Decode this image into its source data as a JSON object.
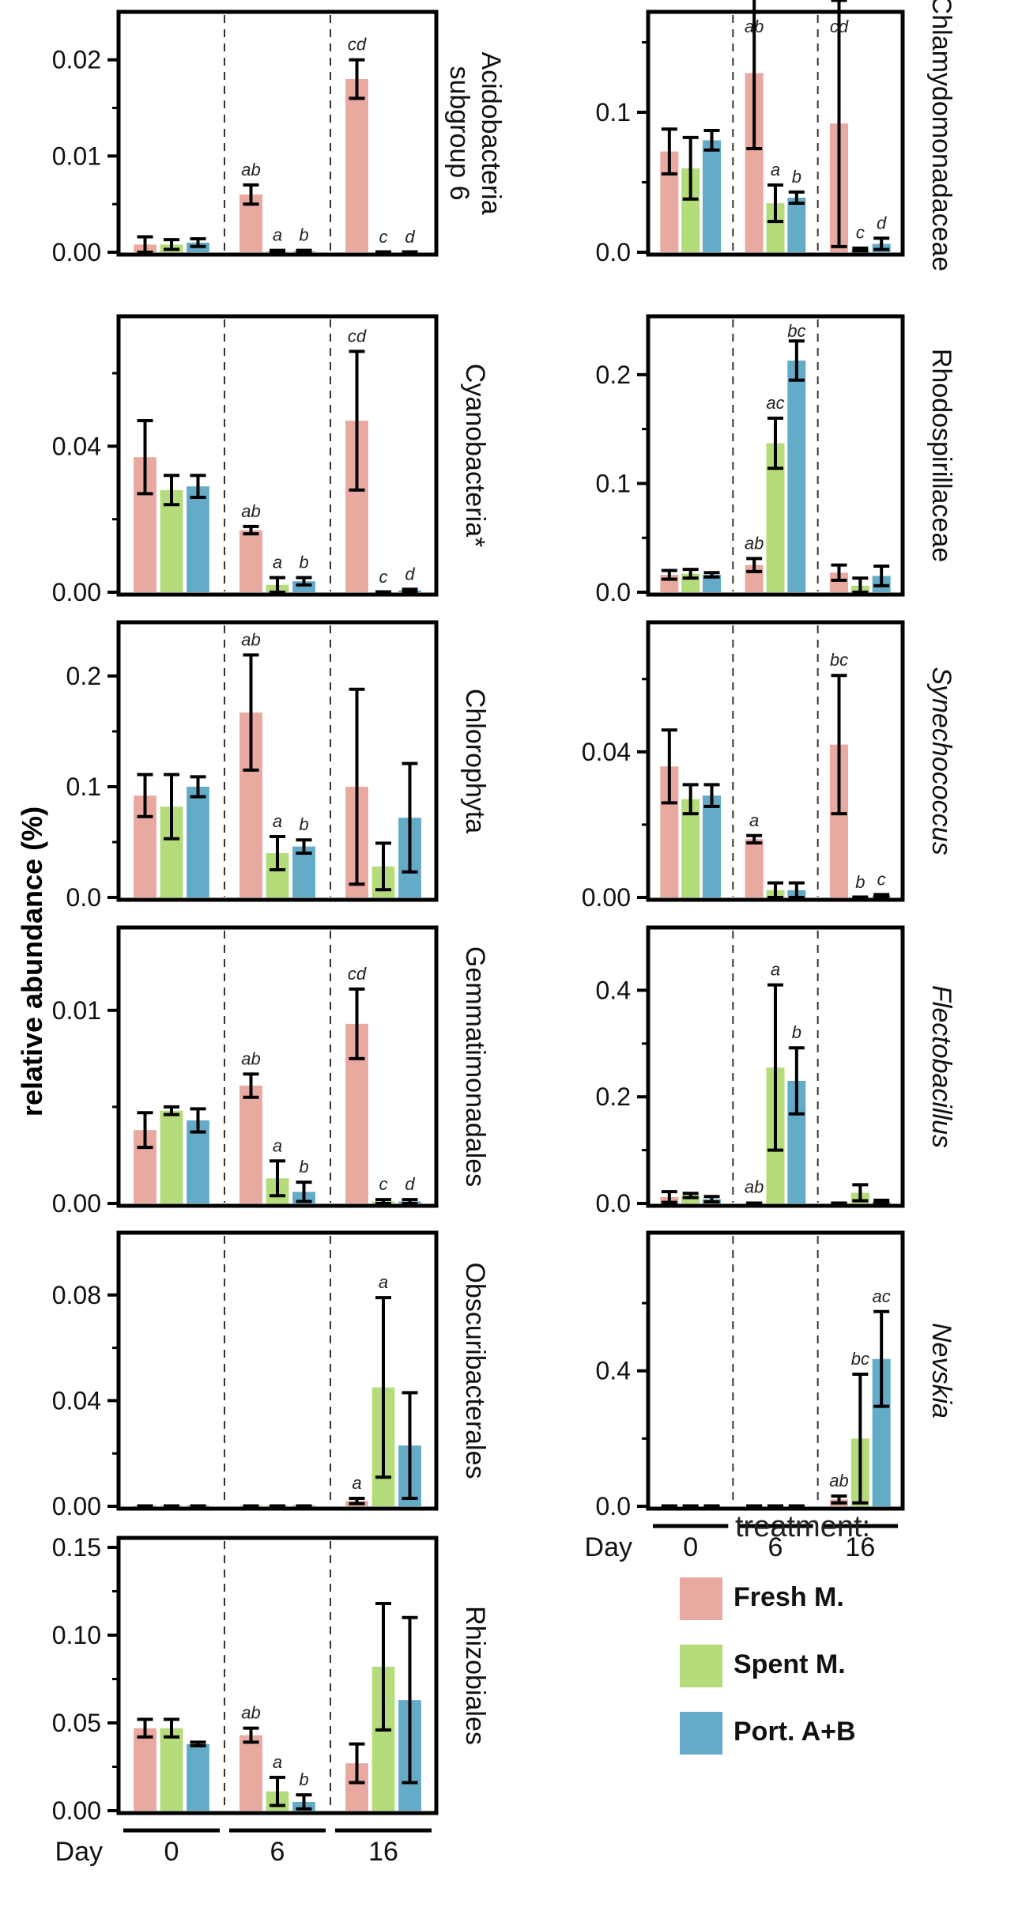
{
  "y_axis_label": "relative abundance (%)",
  "legend": {
    "title": "treatment:",
    "items": [
      {
        "label": "Fresh M.",
        "color": "#E8A9A0"
      },
      {
        "label": "Spent M.",
        "color": "#B5DC7A"
      },
      {
        "label": "Port. A+B",
        "color": "#64ABC8"
      }
    ]
  },
  "day_axis": {
    "label": "Day",
    "days": [
      "0",
      "6",
      "16"
    ]
  },
  "chart_data": [
    {
      "type": "bar",
      "title": "Acidobacteria subgroup 6",
      "title_lines": [
        "Acidobacteria",
        "subgroup 6"
      ],
      "italic": false,
      "column": "left",
      "ylim": [
        0,
        0.024
      ],
      "ticks": [
        "0.00",
        "0.01",
        "0.02"
      ],
      "tick_values": [
        0,
        0.01,
        0.02
      ],
      "minor_ticks": [
        0.005,
        0.015
      ],
      "categories": [
        "0",
        "6",
        "16"
      ],
      "series": [
        {
          "name": "Fresh M.",
          "values": [
            0.0008,
            0.006,
            0.018
          ],
          "err": [
            0.0008,
            0.001,
            0.002
          ],
          "sig": [
            "",
            "ab",
            "cd"
          ]
        },
        {
          "name": "Spent M.",
          "values": [
            0.0008,
            0.0001,
            0
          ],
          "err": [
            0.0005,
            0.0001,
            0
          ],
          "sig": [
            "",
            "a",
            "c"
          ]
        },
        {
          "name": "Port. A+B",
          "values": [
            0.001,
            0.0001,
            0
          ],
          "err": [
            0.0004,
            0.0001,
            0
          ],
          "sig": [
            "",
            "b",
            "d"
          ]
        }
      ]
    },
    {
      "type": "bar",
      "title": "Cyanobacteria*",
      "title_lines": [
        "Cyanobacteria*"
      ],
      "italic": false,
      "column": "left",
      "ylim": [
        0,
        0.073
      ],
      "ticks": [
        "0.00",
        "0.04"
      ],
      "tick_values": [
        0,
        0.04
      ],
      "minor_ticks": [
        0.02,
        0.06
      ],
      "categories": [
        "0",
        "6",
        "16"
      ],
      "series": [
        {
          "name": "Fresh M.",
          "values": [
            0.037,
            0.017,
            0.047
          ],
          "err": [
            0.01,
            0.001,
            0.019
          ],
          "sig": [
            "",
            "ab",
            "cd"
          ]
        },
        {
          "name": "Spent M.",
          "values": [
            0.028,
            0.002,
            0
          ],
          "err": [
            0.004,
            0.002,
            0
          ],
          "sig": [
            "",
            "a",
            "c"
          ]
        },
        {
          "name": "Port. A+B",
          "values": [
            0.029,
            0.003,
            0.0005
          ],
          "err": [
            0.003,
            0.001,
            0.0003
          ],
          "sig": [
            "",
            "b",
            "d"
          ]
        }
      ]
    },
    {
      "type": "bar",
      "title": "Chlorophyta",
      "title_lines": [
        "Chlorophyta"
      ],
      "italic": false,
      "column": "left",
      "ylim": [
        0,
        0.24
      ],
      "ticks": [
        "0.0",
        "0.1",
        "0.2"
      ],
      "tick_values": [
        0,
        0.1,
        0.2
      ],
      "minor_ticks": [
        0.05,
        0.15
      ],
      "categories": [
        "0",
        "6",
        "16"
      ],
      "series": [
        {
          "name": "Fresh M.",
          "values": [
            0.092,
            0.167,
            0.1
          ],
          "err": [
            0.019,
            0.052,
            0.088
          ],
          "sig": [
            "",
            "ab",
            ""
          ]
        },
        {
          "name": "Spent M.",
          "values": [
            0.082,
            0.04,
            0.028
          ],
          "err": [
            0.029,
            0.015,
            0.021
          ],
          "sig": [
            "",
            "a",
            ""
          ]
        },
        {
          "name": "Port. A+B",
          "values": [
            0.1,
            0.046,
            0.072
          ],
          "err": [
            0.009,
            0.006,
            0.049
          ],
          "sig": [
            "",
            "b",
            ""
          ]
        }
      ]
    },
    {
      "type": "bar",
      "title": "Gemmatimonadales",
      "title_lines": [
        "Gemmatimonadales"
      ],
      "italic": false,
      "column": "left",
      "ylim": [
        0,
        0.0138
      ],
      "ticks": [
        "0.00",
        "0.01"
      ],
      "tick_values": [
        0,
        0.01
      ],
      "minor_ticks": [
        0.005
      ],
      "categories": [
        "0",
        "6",
        "16"
      ],
      "series": [
        {
          "name": "Fresh M.",
          "values": [
            0.0038,
            0.0061,
            0.0093
          ],
          "err": [
            0.0009,
            0.0006,
            0.0018
          ],
          "sig": [
            "",
            "ab",
            "cd"
          ]
        },
        {
          "name": "Spent M.",
          "values": [
            0.0048,
            0.0013,
            0.0001
          ],
          "err": [
            0.0002,
            0.0009,
            0.0001
          ],
          "sig": [
            "",
            "a",
            "c"
          ]
        },
        {
          "name": "Port. A+B",
          "values": [
            0.0043,
            0.0006,
            0.0001
          ],
          "err": [
            0.0006,
            0.0005,
            0.0001
          ],
          "sig": [
            "",
            "b",
            "d"
          ]
        }
      ]
    },
    {
      "type": "bar",
      "title": "Obscuribacterales",
      "title_lines": [
        "Obscuribacterales"
      ],
      "italic": false,
      "column": "left",
      "ylim": [
        0,
        0.1
      ],
      "ticks": [
        "0.00",
        "0.04",
        "0.08"
      ],
      "tick_values": [
        0,
        0.04,
        0.08
      ],
      "minor_ticks": [
        0.02,
        0.06
      ],
      "categories": [
        "0",
        "6",
        "16"
      ],
      "series": [
        {
          "name": "Fresh M.",
          "values": [
            0.0003,
            0.0003,
            0.002
          ],
          "err": [
            0,
            0,
            0.001
          ],
          "sig": [
            "",
            "",
            "a"
          ]
        },
        {
          "name": "Spent M.",
          "values": [
            0.0003,
            0.0003,
            0.045
          ],
          "err": [
            0,
            0,
            0.034
          ],
          "sig": [
            "",
            "",
            "a"
          ]
        },
        {
          "name": "Port. A+B",
          "values": [
            0.0003,
            0.0003,
            0.023
          ],
          "err": [
            0,
            0,
            0.02
          ],
          "sig": [
            "",
            "",
            ""
          ]
        }
      ]
    },
    {
      "type": "bar",
      "title": "Rhizobiales",
      "title_lines": [
        "Rhizobiales"
      ],
      "italic": false,
      "column": "left",
      "ylim": [
        0,
        0.15
      ],
      "ticks": [
        "0.00",
        "0.05",
        "0.10",
        "0.15"
      ],
      "tick_values": [
        0,
        0.05,
        0.1,
        0.15
      ],
      "minor_ticks": [
        0.025,
        0.075,
        0.125
      ],
      "categories": [
        "0",
        "6",
        "16"
      ],
      "series": [
        {
          "name": "Fresh M.",
          "values": [
            0.047,
            0.043,
            0.027
          ],
          "err": [
            0.005,
            0.004,
            0.011
          ],
          "sig": [
            "",
            "ab",
            ""
          ]
        },
        {
          "name": "Spent M.",
          "values": [
            0.047,
            0.011,
            0.082
          ],
          "err": [
            0.005,
            0.008,
            0.036
          ],
          "sig": [
            "",
            "a",
            ""
          ]
        },
        {
          "name": "Port. A+B",
          "values": [
            0.038,
            0.005,
            0.063
          ],
          "err": [
            0.001,
            0.004,
            0.047
          ],
          "sig": [
            "",
            "b",
            ""
          ]
        }
      ]
    },
    {
      "type": "bar",
      "title": "Chlamydomonadaceae",
      "title_lines": [
        "Chlamydomonadaceae"
      ],
      "italic": false,
      "column": "right",
      "ylim": [
        0,
        0.165
      ],
      "ticks": [
        "0.0",
        "0.1"
      ],
      "tick_values": [
        0,
        0.1
      ],
      "minor_ticks": [
        0.05,
        0.15
      ],
      "categories": [
        "0",
        "6",
        "16"
      ],
      "series": [
        {
          "name": "Fresh M.",
          "values": [
            0.072,
            0.128,
            0.092
          ],
          "err": [
            0.016,
            0.054,
            0.088
          ],
          "sig": [
            "",
            "ab",
            "cd"
          ]
        },
        {
          "name": "Spent M.",
          "values": [
            0.06,
            0.035,
            0.002
          ],
          "err": [
            0.022,
            0.013,
            0.001
          ],
          "sig": [
            "",
            "a",
            "c"
          ]
        },
        {
          "name": "Port. A+B",
          "values": [
            0.08,
            0.039,
            0.006
          ],
          "err": [
            0.007,
            0.004,
            0.004
          ],
          "sig": [
            "",
            "b",
            "d"
          ]
        }
      ]
    },
    {
      "type": "bar",
      "title": "Rhodospirillaceae",
      "title_lines": [
        "Rhodospirillaceae"
      ],
      "italic": false,
      "column": "right",
      "ylim": [
        0,
        0.245
      ],
      "ticks": [
        "0.0",
        "0.1",
        "0.2"
      ],
      "tick_values": [
        0,
        0.1,
        0.2
      ],
      "minor_ticks": [
        0.05,
        0.15
      ],
      "categories": [
        "0",
        "6",
        "16"
      ],
      "series": [
        {
          "name": "Fresh M.",
          "values": [
            0.016,
            0.025,
            0.018
          ],
          "err": [
            0.004,
            0.006,
            0.007
          ],
          "sig": [
            "",
            "ab",
            ""
          ]
        },
        {
          "name": "Spent M.",
          "values": [
            0.017,
            0.137,
            0.006
          ],
          "err": [
            0.004,
            0.023,
            0.007
          ],
          "sig": [
            "",
            "ac",
            ""
          ]
        },
        {
          "name": "Port. A+B",
          "values": [
            0.016,
            0.213,
            0.015
          ],
          "err": [
            0.002,
            0.018,
            0.009
          ],
          "sig": [
            "",
            "bc",
            ""
          ]
        }
      ]
    },
    {
      "type": "bar",
      "title": "Synechococcus",
      "title_lines": [
        "Synechococcus"
      ],
      "italic": true,
      "column": "right",
      "ylim": [
        0,
        0.073
      ],
      "ticks": [
        "0.00",
        "0.04"
      ],
      "tick_values": [
        0,
        0.04
      ],
      "minor_ticks": [
        0.02,
        0.06
      ],
      "categories": [
        "0",
        "6",
        "16"
      ],
      "series": [
        {
          "name": "Fresh M.",
          "values": [
            0.036,
            0.016,
            0.042
          ],
          "err": [
            0.01,
            0.001,
            0.019
          ],
          "sig": [
            "",
            "a",
            "bc"
          ]
        },
        {
          "name": "Spent M.",
          "values": [
            0.027,
            0.002,
            0
          ],
          "err": [
            0.004,
            0.002,
            0
          ],
          "sig": [
            "",
            "",
            "b"
          ]
        },
        {
          "name": "Port. A+B",
          "values": [
            0.028,
            0.002,
            0.0005
          ],
          "err": [
            0.003,
            0.002,
            0.0003
          ],
          "sig": [
            "",
            "",
            "c"
          ]
        }
      ]
    },
    {
      "type": "bar",
      "title": "Flectobacillus",
      "title_lines": [
        "Flectobacillus"
      ],
      "italic": true,
      "column": "right",
      "ylim": [
        0,
        0.5
      ],
      "ticks": [
        "0.0",
        "0.2",
        "0.4"
      ],
      "tick_values": [
        0,
        0.2,
        0.4
      ],
      "minor_ticks": [
        0.1,
        0.3
      ],
      "categories": [
        "0",
        "6",
        "16"
      ],
      "series": [
        {
          "name": "Fresh M.",
          "values": [
            0.012,
            0.002,
            0.002
          ],
          "err": [
            0.01,
            0,
            0
          ],
          "sig": [
            "",
            "ab",
            ""
          ]
        },
        {
          "name": "Spent M.",
          "values": [
            0.015,
            0.255,
            0.02
          ],
          "err": [
            0.004,
            0.155,
            0.015
          ],
          "sig": [
            "",
            "a",
            ""
          ]
        },
        {
          "name": "Port. A+B",
          "values": [
            0.008,
            0.23,
            0.003
          ],
          "err": [
            0.005,
            0.062,
            0.003
          ],
          "sig": [
            "",
            "b",
            ""
          ]
        }
      ]
    },
    {
      "type": "bar",
      "title": "Nevskia",
      "title_lines": [
        "Nevskia"
      ],
      "italic": true,
      "column": "right",
      "ylim": [
        0,
        0.78
      ],
      "ticks": [
        "0.0",
        "0.4"
      ],
      "tick_values": [
        0,
        0.4
      ],
      "minor_ticks": [
        0.2,
        0.6
      ],
      "categories": [
        "0",
        "6",
        "16"
      ],
      "series": [
        {
          "name": "Fresh M.",
          "values": [
            0.001,
            0.001,
            0.02
          ],
          "err": [
            0,
            0,
            0.01
          ],
          "sig": [
            "",
            "",
            "ab"
          ]
        },
        {
          "name": "Spent M.",
          "values": [
            0.001,
            0.001,
            0.2
          ],
          "err": [
            0,
            0,
            0.19
          ],
          "sig": [
            "",
            "",
            "bc"
          ]
        },
        {
          "name": "Port. A+B",
          "values": [
            0.001,
            0.001,
            0.435
          ],
          "err": [
            0,
            0,
            0.14
          ],
          "sig": [
            "",
            "",
            "ac"
          ]
        }
      ]
    }
  ]
}
